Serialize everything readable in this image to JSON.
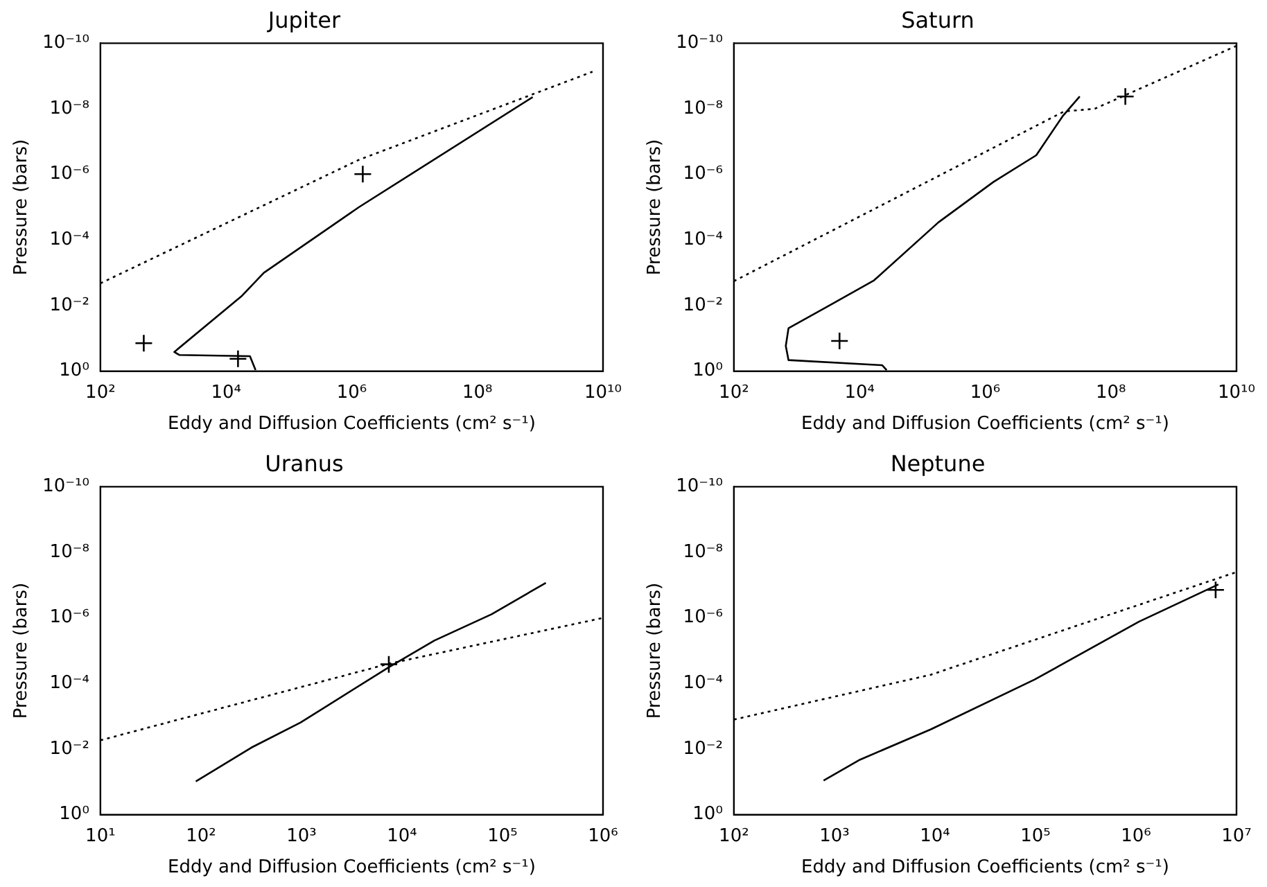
{
  "chart_data": [
    {
      "type": "line",
      "title": "Jupiter",
      "xlabel": "Eddy and Diffusion Coefficients (cm² s⁻¹)",
      "ylabel": "Pressure (bars)",
      "log": "xy",
      "grid": false,
      "legend": false,
      "xlim": [
        100,
        10000000000
      ],
      "xticks": [
        {
          "value": 100,
          "label": "10²"
        },
        {
          "value": 10000,
          "label": "10⁴"
        },
        {
          "value": 1000000,
          "label": "10⁶"
        },
        {
          "value": 100000000,
          "label": "10⁸"
        },
        {
          "value": 10000000000,
          "label": "10¹⁰"
        }
      ],
      "ylim": [
        1,
        1e-10
      ],
      "yticks": [
        {
          "value": 1,
          "label": "10⁰"
        },
        {
          "value": 0.01,
          "label": "10⁻²"
        },
        {
          "value": 0.0001,
          "label": "10⁻⁴"
        },
        {
          "value": 1e-06,
          "label": "10⁻⁶"
        },
        {
          "value": 1e-08,
          "label": "10⁻⁸"
        },
        {
          "value": 1e-10,
          "label": "10⁻¹⁰"
        }
      ],
      "series": [
        {
          "type": "line",
          "color": "#000000",
          "line_style": "solid",
          "marker": "none",
          "x": [
            29500,
            24000,
            1800,
            1500,
            18000,
            40000,
            1300000,
            760000000
          ],
          "values": [
            0.93,
            0.35,
            0.32,
            0.26,
            0.005,
            0.001,
            1e-05,
            4.4e-09
          ]
        },
        {
          "type": "line",
          "color": "#000000",
          "line_style": "dotted",
          "marker": "none",
          "x": [
            100,
            1300000,
            6800000000
          ],
          "values": [
            0.0021,
            3.6e-07,
            7.4e-10
          ]
        },
        {
          "type": "scatter",
          "color": "#000000",
          "marker": "cross",
          "x": [
            490,
            15500,
            1500000
          ],
          "values": [
            0.14,
            0.42,
            9.8e-07
          ]
        }
      ]
    },
    {
      "type": "line",
      "title": "Saturn",
      "xlabel": "Eddy and Diffusion Coefficients (cm² s⁻¹)",
      "ylabel": "Pressure (bars)",
      "log": "xy",
      "grid": false,
      "legend": false,
      "xlim": [
        100,
        10000000000
      ],
      "xticks": [
        {
          "value": 100,
          "label": "10²"
        },
        {
          "value": 10000,
          "label": "10⁴"
        },
        {
          "value": 1000000,
          "label": "10⁶"
        },
        {
          "value": 100000000,
          "label": "10⁸"
        },
        {
          "value": 10000000000,
          "label": "10¹⁰"
        }
      ],
      "ylim": [
        1,
        1e-10
      ],
      "yticks": [
        {
          "value": 1,
          "label": "10⁰"
        },
        {
          "value": 0.01,
          "label": "10⁻²"
        },
        {
          "value": 0.0001,
          "label": "10⁻⁴"
        },
        {
          "value": 1e-06,
          "label": "10⁻⁶"
        },
        {
          "value": 1e-08,
          "label": "10⁻⁸"
        },
        {
          "value": 1e-10,
          "label": "10⁻¹⁰"
        }
      ],
      "series": [
        {
          "type": "line",
          "color": "#000000",
          "line_style": "solid",
          "marker": "none",
          "x": [
            27000,
            23000,
            740,
            670,
            740,
            3300,
            17000,
            180000,
            1350000,
            6500000,
            17000000,
            32000000
          ],
          "values": [
            0.93,
            0.66,
            0.46,
            0.17,
            0.049,
            0.01,
            0.0017,
            2.9e-05,
            1.7e-06,
            2.6e-07,
            1.7e-08,
            4.2e-09
          ]
        },
        {
          "type": "line",
          "color": "#000000",
          "line_style": "dotted",
          "marker": "none",
          "x": [
            100,
            18000000,
            55000000,
            10000000000
          ],
          "values": [
            0.0018,
            1.2e-08,
            1e-08,
            1.2e-10
          ]
        },
        {
          "type": "scatter",
          "color": "#000000",
          "marker": "cross",
          "x": [
            4800,
            170000000
          ],
          "values": [
            0.12,
            4.2e-09
          ]
        }
      ]
    },
    {
      "type": "line",
      "title": "Uranus",
      "xlabel": "Eddy and Diffusion Coefficients (cm² s⁻¹)",
      "ylabel": "Pressure (bars)",
      "log": "xy",
      "grid": false,
      "legend": false,
      "xlim": [
        10,
        1000000
      ],
      "xticks": [
        {
          "value": 10,
          "label": "10¹"
        },
        {
          "value": 100,
          "label": "10²"
        },
        {
          "value": 1000,
          "label": "10³"
        },
        {
          "value": 10000,
          "label": "10⁴"
        },
        {
          "value": 100000,
          "label": "10⁵"
        },
        {
          "value": 1000000,
          "label": "10⁶"
        }
      ],
      "ylim": [
        1,
        1e-10
      ],
      "yticks": [
        {
          "value": 1,
          "label": "10⁰"
        },
        {
          "value": 0.01,
          "label": "10⁻²"
        },
        {
          "value": 0.0001,
          "label": "10⁻⁴"
        },
        {
          "value": 1e-06,
          "label": "10⁻⁶"
        },
        {
          "value": 1e-08,
          "label": "10⁻⁸"
        },
        {
          "value": 1e-10,
          "label": "10⁻¹⁰"
        }
      ],
      "series": [
        {
          "type": "line",
          "color": "#000000",
          "line_style": "solid",
          "marker": "none",
          "x": [
            89,
            316,
            980,
            7400,
            21000,
            78000,
            270000
          ],
          "values": [
            0.097,
            0.0091,
            0.00155,
            3.2e-05,
            4.9e-06,
            7.7e-07,
            8.5e-08
          ]
        },
        {
          "type": "line",
          "color": "#000000",
          "line_style": "dotted",
          "marker": "none",
          "x": [
            10,
            7400,
            1000000
          ],
          "values": [
            0.0054,
            2.5e-05,
            1e-06
          ]
        },
        {
          "type": "scatter",
          "color": "#000000",
          "marker": "cross",
          "x": [
            7400
          ],
          "values": [
            2.6e-05
          ]
        }
      ]
    },
    {
      "type": "line",
      "title": "Neptune",
      "xlabel": "Eddy and Diffusion Coefficients (cm² s⁻¹)",
      "ylabel": "Pressure (bars)",
      "log": "xy",
      "grid": false,
      "legend": false,
      "xlim": [
        100,
        10000000
      ],
      "xticks": [
        {
          "value": 100,
          "label": "10²"
        },
        {
          "value": 1000,
          "label": "10³"
        },
        {
          "value": 10000,
          "label": "10⁴"
        },
        {
          "value": 100000,
          "label": "10⁵"
        },
        {
          "value": 1000000,
          "label": "10⁶"
        },
        {
          "value": 10000000,
          "label": "10⁷"
        }
      ],
      "ylim": [
        1,
        1e-10
      ],
      "yticks": [
        {
          "value": 1,
          "label": "10⁰"
        },
        {
          "value": 0.01,
          "label": "10⁻²"
        },
        {
          "value": 0.0001,
          "label": "10⁻⁴"
        },
        {
          "value": 1e-06,
          "label": "10⁻⁶"
        },
        {
          "value": 1e-08,
          "label": "10⁻⁸"
        },
        {
          "value": 1e-10,
          "label": "10⁻¹⁰"
        }
      ],
      "series": [
        {
          "type": "line",
          "color": "#000000",
          "line_style": "solid",
          "marker": "none",
          "x": [
            780,
            1800,
            9100,
            98000,
            1070000,
            6600000
          ],
          "values": [
            0.091,
            0.021,
            0.0025,
            7.6e-05,
            1.3e-06,
            9.5e-08
          ]
        },
        {
          "type": "line",
          "color": "#000000",
          "line_style": "dotted",
          "marker": "none",
          "x": [
            100,
            9100,
            10000000
          ],
          "values": [
            0.00126,
            5.4e-05,
            4e-08
          ]
        },
        {
          "type": "scatter",
          "color": "#000000",
          "marker": "cross",
          "x": [
            6200000
          ],
          "values": [
            1.4e-07
          ]
        }
      ]
    }
  ]
}
